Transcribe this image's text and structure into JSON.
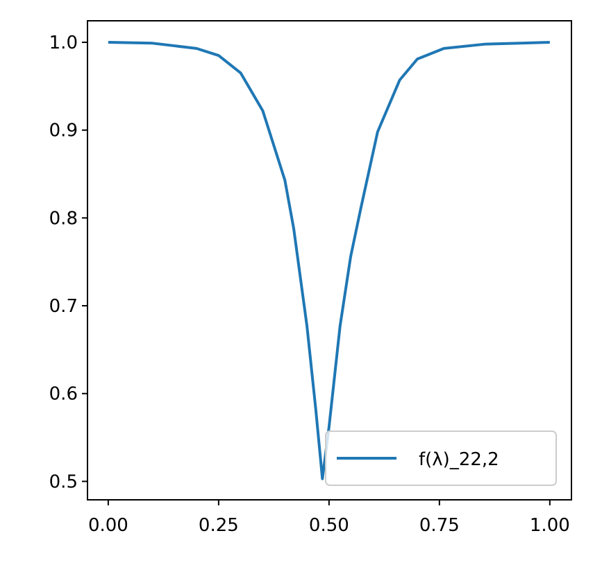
{
  "chart_data": {
    "type": "line",
    "x": [
      0,
      0.1,
      0.2,
      0.25,
      0.3,
      0.35,
      0.4,
      0.42,
      0.45,
      0.47,
      0.485,
      0.5,
      0.525,
      0.549,
      0.572,
      0.61,
      0.66,
      0.7,
      0.76,
      0.855,
      1.0
    ],
    "series": [
      {
        "name": "f(λ)_22,2",
        "color": "#1f77b4",
        "values": [
          1.0,
          0.999,
          0.993,
          0.985,
          0.965,
          0.922,
          0.843,
          0.788,
          0.677,
          0.582,
          0.503,
          0.562,
          0.677,
          0.756,
          0.811,
          0.898,
          0.957,
          0.981,
          0.993,
          0.998,
          1.0
        ]
      }
    ],
    "xlim": [
      -0.047,
      1.049
    ],
    "ylim": [
      0.479,
      1.0245
    ],
    "xticks": [
      {
        "value": 0,
        "label": "0.00"
      },
      {
        "value": 0.25,
        "label": "0.25"
      },
      {
        "value": 0.5,
        "label": "0.50"
      },
      {
        "value": 0.75,
        "label": "0.75"
      },
      {
        "value": 1,
        "label": "1.00"
      }
    ],
    "yticks": [
      0.5,
      0.6,
      0.7,
      0.8,
      0.9,
      {
        "value": 1,
        "label": "1.0"
      }
    ],
    "legend": "lower right"
  }
}
